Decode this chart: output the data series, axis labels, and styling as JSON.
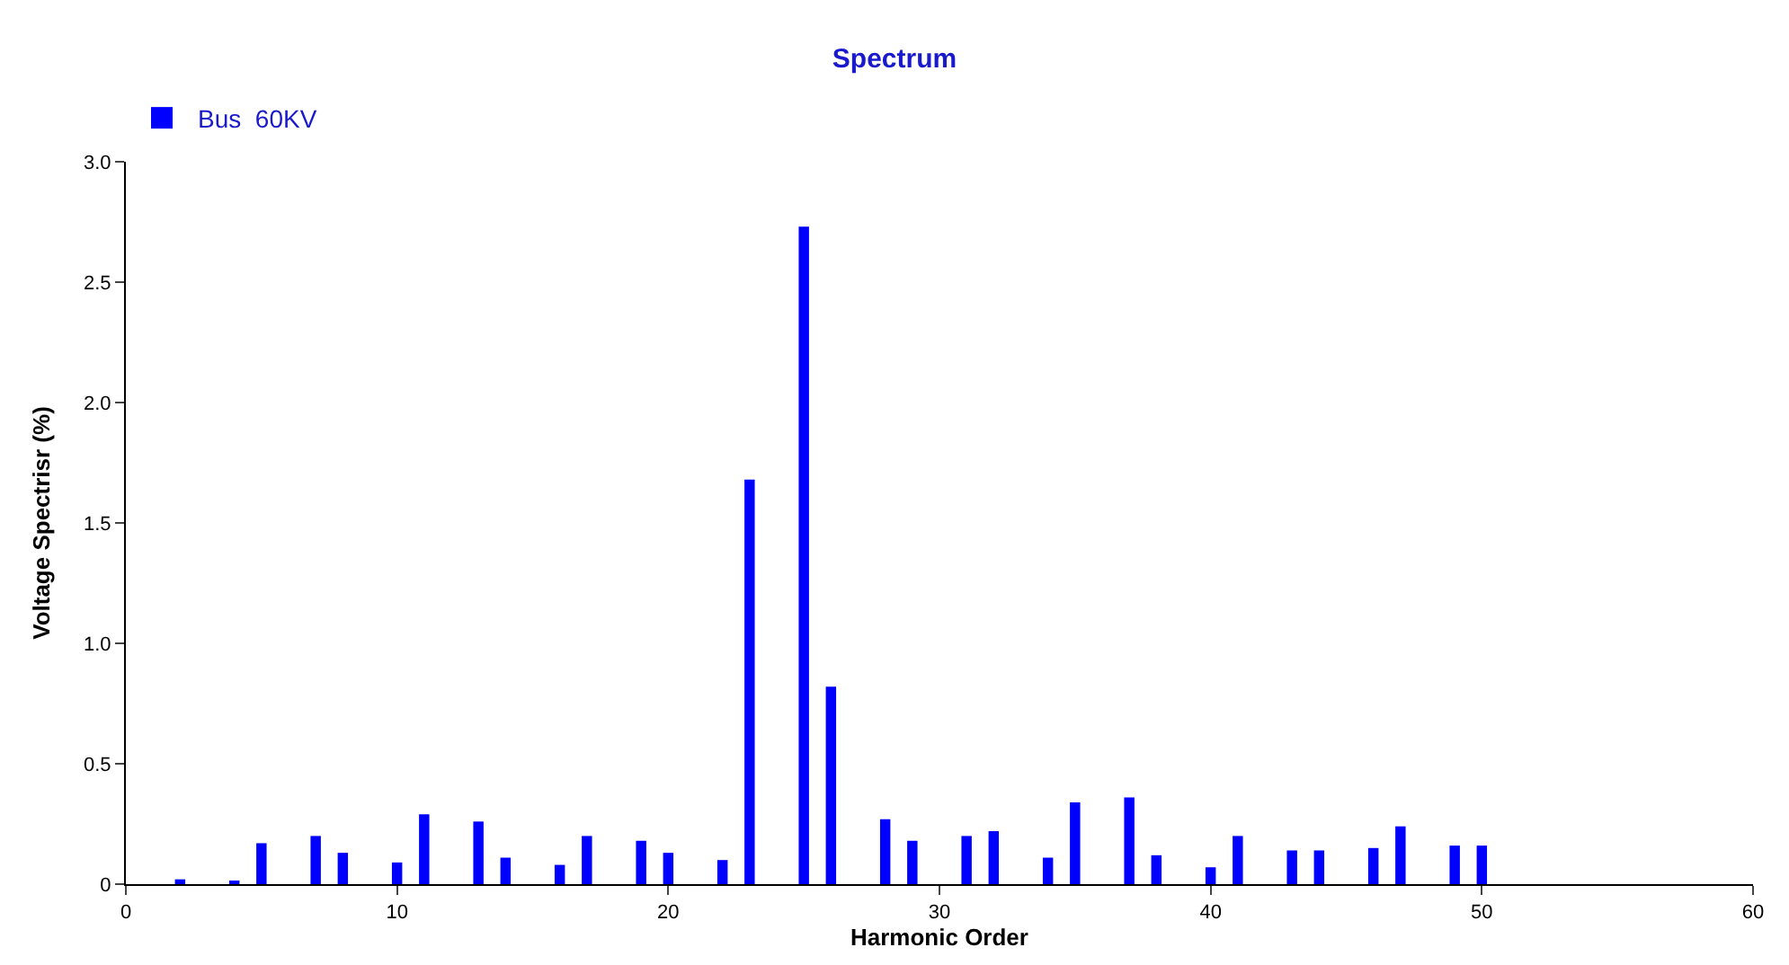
{
  "chart_data": {
    "type": "bar",
    "title": "Spectrum",
    "xlabel": "Harmonic Order",
    "ylabel": "Voltage Spectrisr (%)",
    "x": [
      2,
      4,
      5,
      7,
      8,
      10,
      11,
      13,
      14,
      16,
      17,
      19,
      20,
      22,
      23,
      25,
      26,
      28,
      29,
      31,
      32,
      34,
      35,
      37,
      38,
      40,
      41,
      43,
      44,
      46,
      47,
      49,
      50
    ],
    "series": [
      {
        "name": "Bus  60KV",
        "color": "#0000ff",
        "values": [
          0.02,
          0.01,
          0.17,
          0.2,
          0.13,
          0.09,
          0.29,
          0.26,
          0.11,
          0.08,
          0.2,
          0.18,
          0.13,
          0.1,
          1.68,
          2.73,
          0.82,
          0.27,
          0.18,
          0.2,
          0.22,
          0.11,
          0.34,
          0.36,
          0.12,
          0.07,
          0.2,
          0.14,
          0.14,
          0.15,
          0.24,
          0.16,
          0.16
        ]
      }
    ],
    "xlim": [
      0,
      60
    ],
    "xticks": [
      0,
      10,
      20,
      30,
      40,
      50,
      60
    ],
    "ylim": [
      0,
      3.0
    ],
    "yticks": [
      0,
      {
        "value": 0.5,
        "label": "0.5"
      },
      {
        "value": 1,
        "label": "1.0"
      },
      {
        "value": 1.5,
        "label": "1.5"
      },
      {
        "value": 2,
        "label": "2.0"
      },
      {
        "value": 2.5,
        "label": "2.5"
      },
      {
        "value": 3,
        "label": "3.0"
      }
    ],
    "legend": "top left"
  }
}
